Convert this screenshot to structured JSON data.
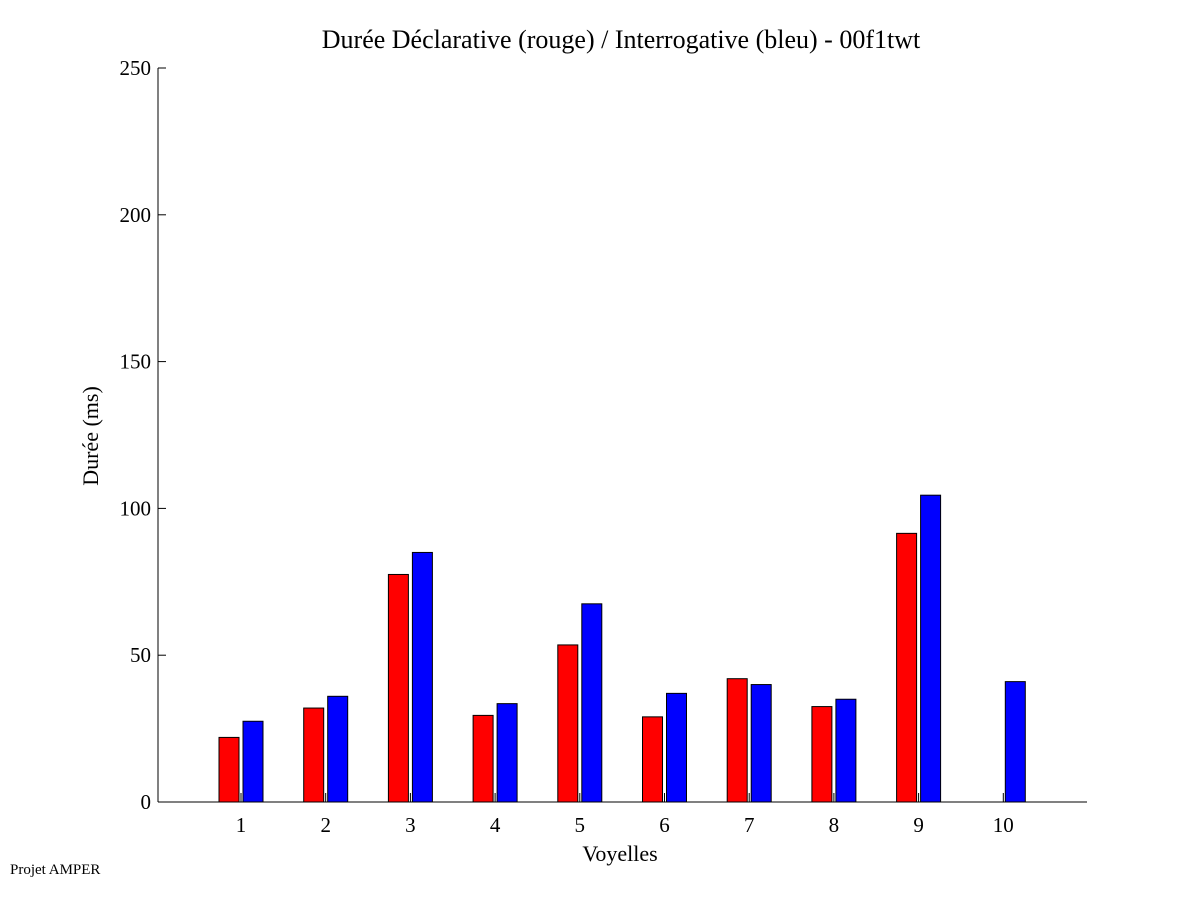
{
  "chart_data": {
    "type": "bar",
    "title": "Durée Déclarative (rouge) / Interrogative (bleu) - 00f1twt",
    "xlabel": "Voyelles",
    "ylabel": "Durée (ms)",
    "categories": [
      "1",
      "2",
      "3",
      "4",
      "5",
      "6",
      "7",
      "8",
      "9",
      "10"
    ],
    "ylim": [
      0,
      250
    ],
    "yticks": [
      "0",
      "50",
      "100",
      "150",
      "200",
      "250"
    ],
    "grid": false,
    "series": [
      {
        "color": "#ff0000",
        "values": [
          22,
          32,
          77.5,
          29.5,
          53.5,
          29,
          42,
          32.5,
          91.5,
          null
        ]
      },
      {
        "color": "#0000ff",
        "values": [
          27.5,
          36,
          85,
          33.5,
          67.5,
          37,
          40,
          35,
          104.5,
          41
        ]
      }
    ]
  },
  "footer": {
    "text": "Projet AMPER"
  }
}
